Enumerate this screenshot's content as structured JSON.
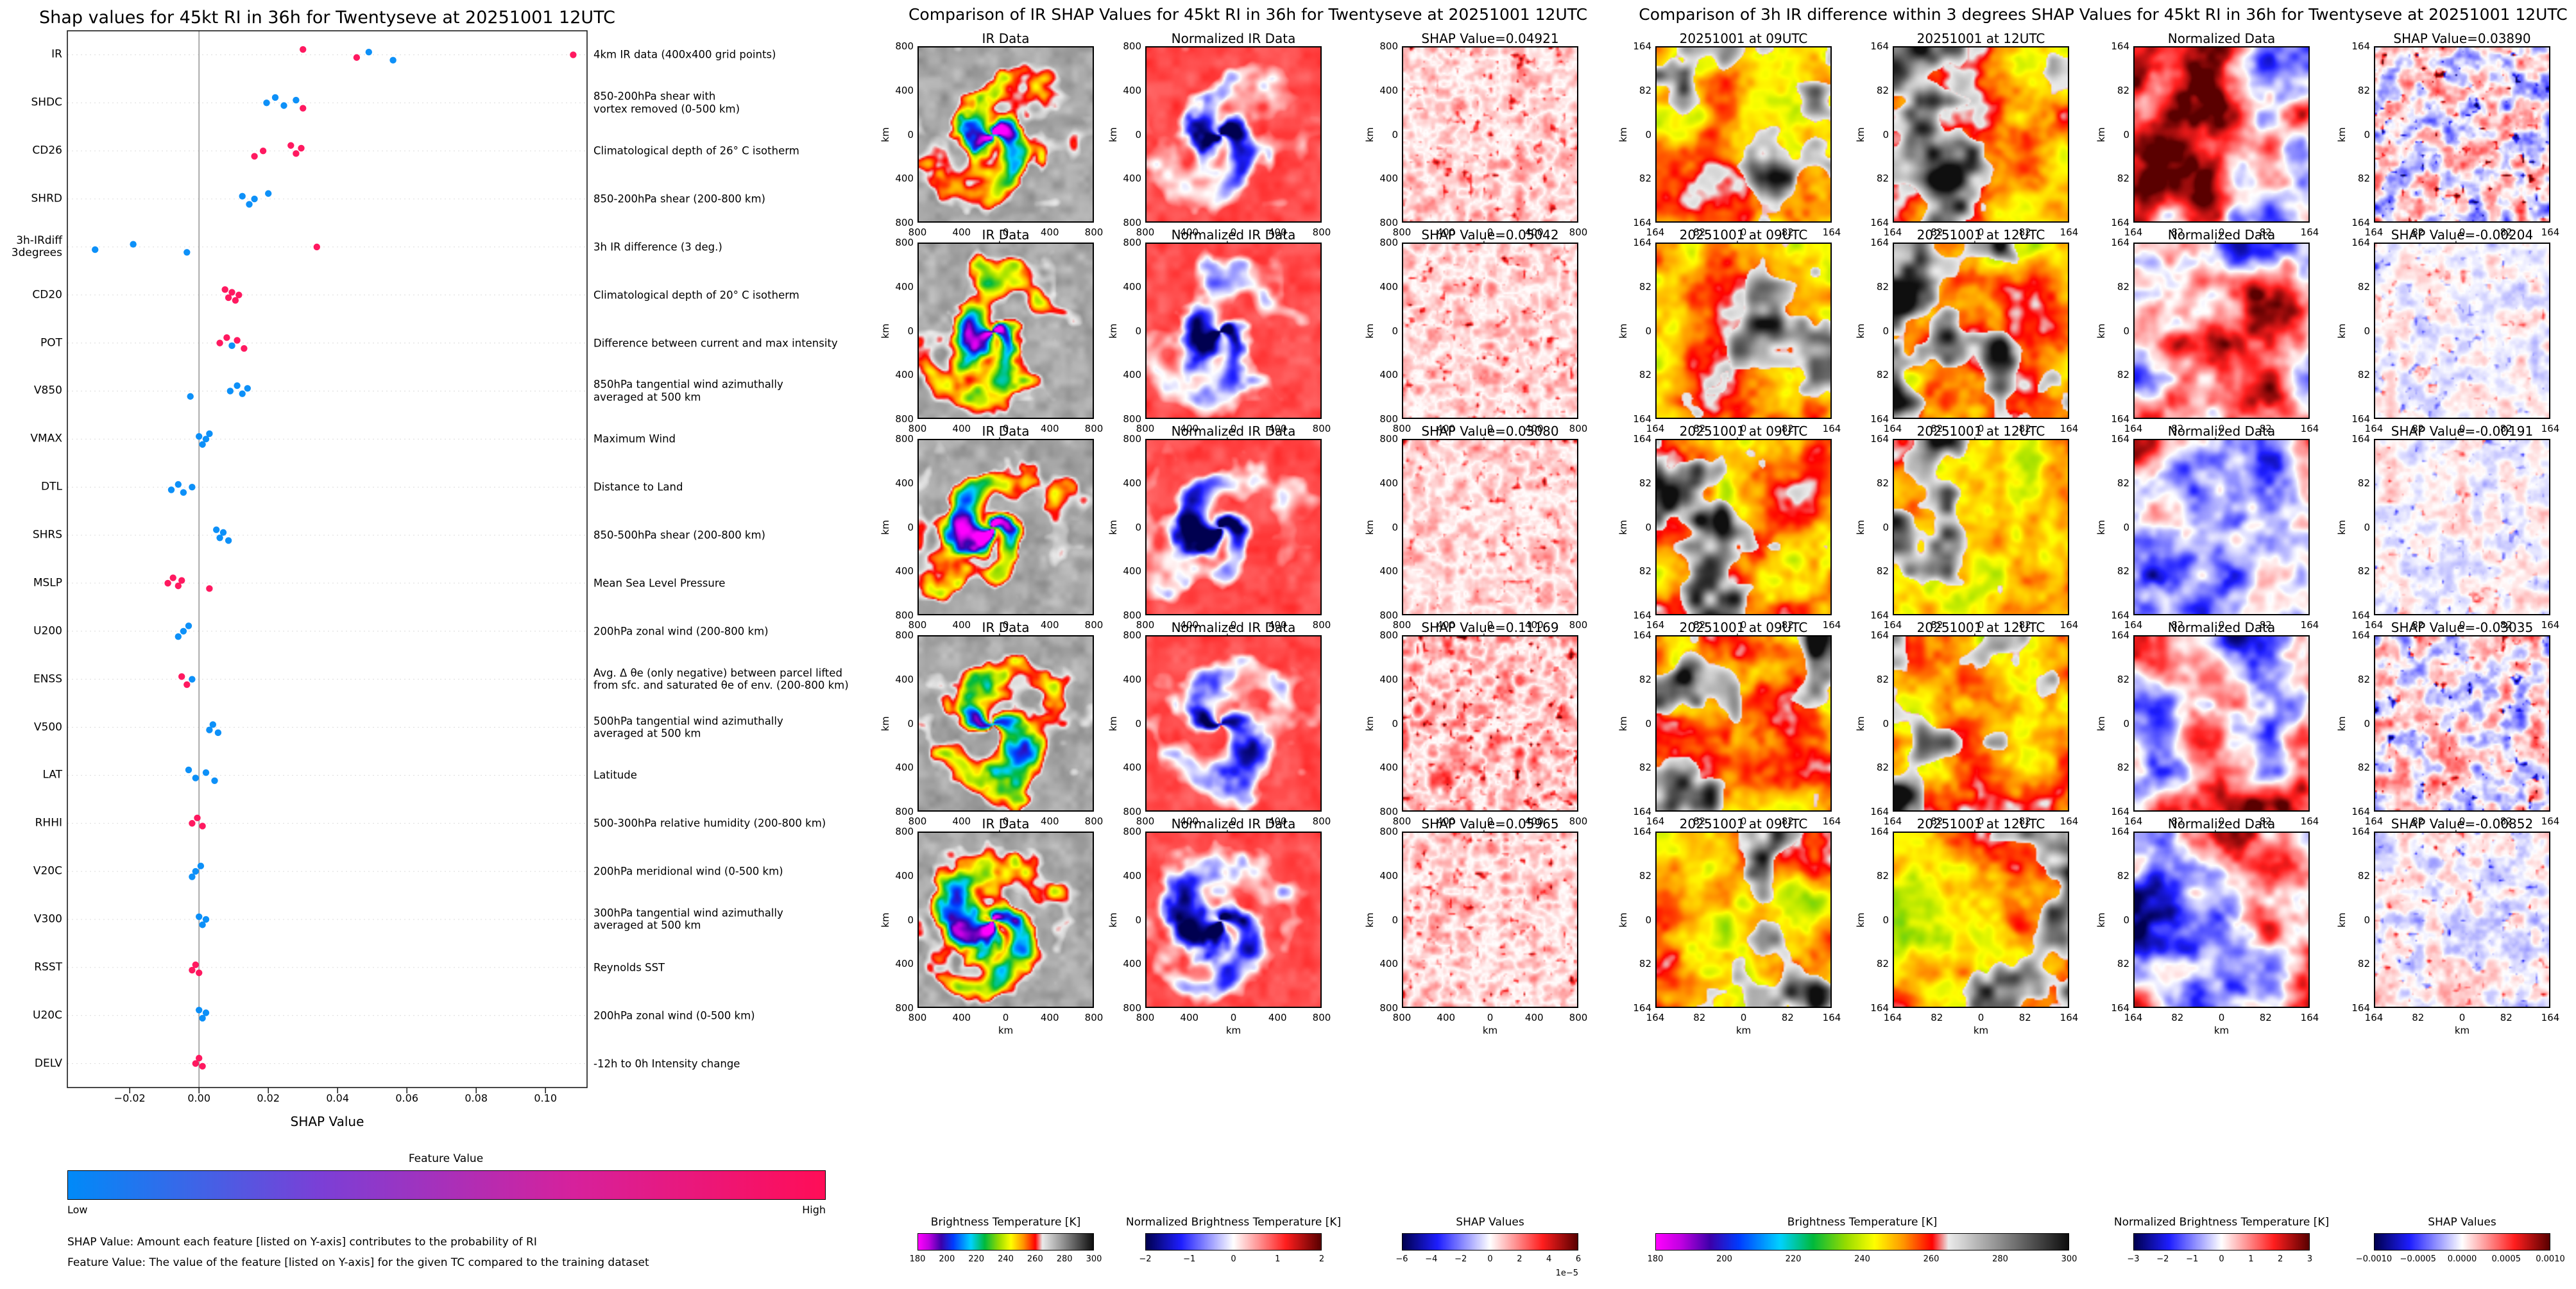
{
  "chart_data": [
    {
      "type": "beeswarm",
      "title": "Shap values for 45kt RI in 36h for Twentyseve at 20251001 12UTC",
      "xlabel": "SHAP Value",
      "xlim": [
        -0.038,
        0.112
      ],
      "xticks": [
        -0.02,
        0.0,
        0.02,
        0.04,
        0.06,
        0.08,
        0.1
      ],
      "xtick_labels": [
        "−0.02",
        "0.00",
        "0.02",
        "0.04",
        "0.06",
        "0.08",
        "0.10"
      ],
      "point_colors": {
        "l": "#008af8",
        "h": "#ff0d57"
      },
      "colorbar": {
        "title": "Feature Value",
        "low_label": "Low",
        "high_label": "High",
        "gradient": [
          "#008af8",
          "#7b3fd6",
          "#d6219c",
          "#ff0d57"
        ]
      },
      "footnotes": [
        "SHAP Value: Amount each feature [listed on Y-axis] contributes to the probability of RI",
        "Feature Value: The value of the feature [listed on Y-axis] for the given TC compared to the training dataset"
      ],
      "features": [
        {
          "name": "IR",
          "desc": "4km IR data (400x400 grid points)",
          "points": [
            {
              "x": 0.03,
              "f": "h"
            },
            {
              "x": 0.0455,
              "f": "h"
            },
            {
              "x": 0.049,
              "f": "l"
            },
            {
              "x": 0.056,
              "f": "l"
            },
            {
              "x": 0.108,
              "f": "h"
            }
          ]
        },
        {
          "name": "SHDC",
          "desc": "850-200hPa shear with\nvortex removed (0-500 km)",
          "points": [
            {
              "x": 0.0195,
              "f": "l"
            },
            {
              "x": 0.022,
              "f": "l"
            },
            {
              "x": 0.0245,
              "f": "l"
            },
            {
              "x": 0.028,
              "f": "l"
            },
            {
              "x": 0.03,
              "f": "h"
            }
          ]
        },
        {
          "name": "CD26",
          "desc": "Climatological depth of 26° C isotherm",
          "points": [
            {
              "x": 0.016,
              "f": "h"
            },
            {
              "x": 0.0185,
              "f": "h"
            },
            {
              "x": 0.0265,
              "f": "h"
            },
            {
              "x": 0.028,
              "f": "h"
            },
            {
              "x": 0.0295,
              "f": "h"
            }
          ]
        },
        {
          "name": "SHRD",
          "desc": "850-200hPa shear (200-800 km)",
          "points": [
            {
              "x": 0.0125,
              "f": "l"
            },
            {
              "x": 0.0145,
              "f": "l"
            },
            {
              "x": 0.016,
              "f": "l"
            },
            {
              "x": 0.02,
              "f": "l"
            }
          ]
        },
        {
          "name": "3h-IRdiff\n3degrees",
          "desc": "3h IR difference (3 deg.)",
          "points": [
            {
              "x": -0.03,
              "f": "l"
            },
            {
              "x": -0.019,
              "f": "l"
            },
            {
              "x": -0.0035,
              "f": "l"
            },
            {
              "x": 0.034,
              "f": "h"
            }
          ]
        },
        {
          "name": "CD20",
          "desc": "Climatological depth of 20° C isotherm",
          "points": [
            {
              "x": 0.0075,
              "f": "h"
            },
            {
              "x": 0.0085,
              "f": "h"
            },
            {
              "x": 0.0095,
              "f": "h"
            },
            {
              "x": 0.0105,
              "f": "h"
            },
            {
              "x": 0.0115,
              "f": "h"
            }
          ]
        },
        {
          "name": "POT",
          "desc": "Difference between current and max intensity",
          "points": [
            {
              "x": 0.006,
              "f": "h"
            },
            {
              "x": 0.008,
              "f": "h"
            },
            {
              "x": 0.0095,
              "f": "l"
            },
            {
              "x": 0.011,
              "f": "h"
            },
            {
              "x": 0.013,
              "f": "h"
            }
          ]
        },
        {
          "name": "V850",
          "desc": "850hPa tangential wind azimuthally\naveraged at 500 km",
          "points": [
            {
              "x": -0.0025,
              "f": "l"
            },
            {
              "x": 0.009,
              "f": "l"
            },
            {
              "x": 0.011,
              "f": "l"
            },
            {
              "x": 0.0125,
              "f": "l"
            },
            {
              "x": 0.014,
              "f": "l"
            }
          ]
        },
        {
          "name": "VMAX",
          "desc": "Maximum Wind",
          "points": [
            {
              "x": 0.0,
              "f": "l"
            },
            {
              "x": 0.001,
              "f": "l"
            },
            {
              "x": 0.002,
              "f": "l"
            },
            {
              "x": 0.003,
              "f": "l"
            }
          ]
        },
        {
          "name": "DTL",
          "desc": "Distance to Land",
          "points": [
            {
              "x": -0.008,
              "f": "l"
            },
            {
              "x": -0.006,
              "f": "l"
            },
            {
              "x": -0.0045,
              "f": "l"
            },
            {
              "x": -0.002,
              "f": "l"
            }
          ]
        },
        {
          "name": "SHRS",
          "desc": "850-500hPa shear (200-800 km)",
          "points": [
            {
              "x": 0.005,
              "f": "l"
            },
            {
              "x": 0.006,
              "f": "l"
            },
            {
              "x": 0.007,
              "f": "l"
            },
            {
              "x": 0.0085,
              "f": "l"
            }
          ]
        },
        {
          "name": "MSLP",
          "desc": "Mean Sea Level Pressure",
          "points": [
            {
              "x": -0.009,
              "f": "h"
            },
            {
              "x": -0.0075,
              "f": "h"
            },
            {
              "x": -0.006,
              "f": "h"
            },
            {
              "x": -0.005,
              "f": "h"
            },
            {
              "x": 0.003,
              "f": "h"
            }
          ]
        },
        {
          "name": "U200",
          "desc": "200hPa zonal wind (200-800 km)",
          "points": [
            {
              "x": -0.006,
              "f": "l"
            },
            {
              "x": -0.0045,
              "f": "l"
            },
            {
              "x": -0.003,
              "f": "l"
            }
          ]
        },
        {
          "name": "ENSS",
          "desc": "Avg. Δ θe (only negative) between parcel lifted\nfrom sfc. and saturated θe of env. (200-800 km)",
          "points": [
            {
              "x": -0.005,
              "f": "h"
            },
            {
              "x": -0.0035,
              "f": "h"
            },
            {
              "x": -0.002,
              "f": "l"
            }
          ]
        },
        {
          "name": "V500",
          "desc": "500hPa tangential wind azimuthally\naveraged at 500 km",
          "points": [
            {
              "x": 0.003,
              "f": "l"
            },
            {
              "x": 0.004,
              "f": "l"
            },
            {
              "x": 0.0055,
              "f": "l"
            }
          ]
        },
        {
          "name": "LAT",
          "desc": "Latitude",
          "points": [
            {
              "x": -0.003,
              "f": "l"
            },
            {
              "x": -0.001,
              "f": "l"
            },
            {
              "x": 0.002,
              "f": "l"
            },
            {
              "x": 0.0045,
              "f": "l"
            }
          ]
        },
        {
          "name": "RHHI",
          "desc": "500-300hPa relative humidity (200-800 km)",
          "points": [
            {
              "x": -0.002,
              "f": "h"
            },
            {
              "x": -0.0005,
              "f": "h"
            },
            {
              "x": 0.001,
              "f": "h"
            }
          ]
        },
        {
          "name": "V20C",
          "desc": "200hPa meridional wind (0-500 km)",
          "points": [
            {
              "x": -0.002,
              "f": "l"
            },
            {
              "x": -0.001,
              "f": "l"
            },
            {
              "x": 0.0005,
              "f": "l"
            }
          ]
        },
        {
          "name": "V300",
          "desc": "300hPa tangential wind azimuthally\naveraged at 500 km",
          "points": [
            {
              "x": 0.0,
              "f": "l"
            },
            {
              "x": 0.001,
              "f": "l"
            },
            {
              "x": 0.002,
              "f": "l"
            }
          ]
        },
        {
          "name": "RSST",
          "desc": "Reynolds SST",
          "points": [
            {
              "x": -0.002,
              "f": "h"
            },
            {
              "x": -0.001,
              "f": "h"
            },
            {
              "x": 0.0,
              "f": "h"
            }
          ]
        },
        {
          "name": "U20C",
          "desc": "200hPa zonal wind (0-500 km)",
          "points": [
            {
              "x": 0.0,
              "f": "l"
            },
            {
              "x": 0.001,
              "f": "l"
            },
            {
              "x": 0.002,
              "f": "l"
            }
          ]
        },
        {
          "name": "DELV",
          "desc": "-12h to 0h Intensity change",
          "points": [
            {
              "x": -0.001,
              "f": "h"
            },
            {
              "x": 0.0,
              "f": "h"
            },
            {
              "x": 0.001,
              "f": "h"
            }
          ]
        }
      ]
    },
    {
      "type": "image-grid",
      "title": "Comparison of IR SHAP Values for 45kt RI in 36h for Twentyseve at 20251001 12UTC",
      "col_titles": [
        "IR Data",
        "Normalized IR Data"
      ],
      "shap_titles": [
        "SHAP Value=0.04921",
        "SHAP Value=0.05042",
        "SHAP Value=0.03080",
        "SHAP Value=0.11169",
        "SHAP Value=0.05965"
      ],
      "shap_values": [
        0.04921,
        0.05042,
        0.0308,
        0.11169,
        0.05965
      ],
      "axis": {
        "unit": "km",
        "tick_labels": [
          "800",
          "400",
          "0",
          "400",
          "800"
        ],
        "extent_km": [
          -800,
          800
        ]
      },
      "colorbars": [
        {
          "label": "Brightness Temperature [K]",
          "tick_labels": [
            "180",
            "200",
            "220",
            "240",
            "260",
            "280",
            "300"
          ],
          "cmap": "ir"
        },
        {
          "label": "Normalized Brightness Temperature [K]",
          "tick_labels": [
            "−2",
            "−1",
            "0",
            "1",
            "2"
          ],
          "cmap": "seismic"
        },
        {
          "label": "SHAP Values",
          "tick_labels": [
            "−6",
            "−4",
            "−2",
            "0",
            "2",
            "4",
            "6"
          ],
          "offset": "1e−5",
          "cmap": "seismic"
        }
      ]
    },
    {
      "type": "image-grid",
      "title": "Comparison of 3h IR difference within 3 degrees SHAP Values for 45kt RI in 36h for Twentyseve at 20251001 12UTC",
      "col_titles": [
        "20251001 at 09UTC",
        "20251001 at 12UTC",
        "Normalized Data"
      ],
      "shap_titles": [
        "SHAP Value=0.03890",
        "SHAP Value=-0.00204",
        "SHAP Value=-0.00191",
        "SHAP Value=-0.03035",
        "SHAP Value=-0.00852"
      ],
      "shap_values": [
        0.0389,
        -0.00204,
        -0.00191,
        -0.03035,
        -0.00852
      ],
      "axis": {
        "unit": "km",
        "tick_labels": [
          "164",
          "82",
          "0",
          "82",
          "164"
        ],
        "extent_km": [
          -164,
          164
        ]
      },
      "colorbars": [
        {
          "label": "Brightness Temperature [K]",
          "tick_labels": [
            "180",
            "200",
            "220",
            "240",
            "260",
            "280",
            "300"
          ],
          "cmap": "ir"
        },
        {
          "label": "Normalized Brightness Temperature [K]",
          "tick_labels": [
            "−3",
            "−2",
            "−1",
            "0",
            "1",
            "2",
            "3"
          ],
          "cmap": "seismic"
        },
        {
          "label": "SHAP Values",
          "tick_labels": [
            "−0.0010",
            "−0.0005",
            "0.0000",
            "0.0005",
            "0.0010"
          ],
          "cmap": "seismic"
        }
      ]
    }
  ]
}
